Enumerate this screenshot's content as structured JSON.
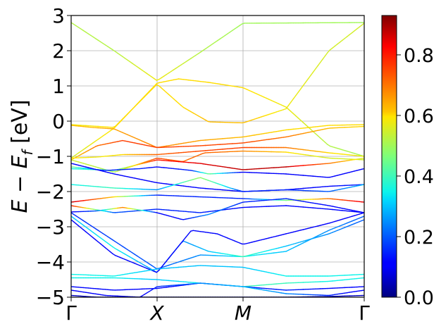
{
  "chart_data": {
    "type": "line",
    "title": "",
    "ylabel": "E − E_f [eV]",
    "ylabel_main": "E − E",
    "ylabel_sub": "f",
    "ylabel_unit": " [eV]",
    "ylim": [
      -5,
      3
    ],
    "yticks": [
      3,
      2,
      1,
      0,
      -1,
      -2,
      -3,
      -4,
      -5
    ],
    "ytick_labels": [
      "3",
      "2",
      "1",
      "0",
      "−1",
      "−2",
      "−3",
      "−4",
      "−5"
    ],
    "xrange": [
      0,
      3.41
    ],
    "xticks": [
      0,
      1,
      2,
      3.41
    ],
    "xtick_labels": [
      "Γ",
      "X",
      "M",
      "Γ"
    ],
    "grid": true,
    "colormap": "jet",
    "colorbar": {
      "range": [
        0,
        0.93
      ],
      "ticks": [
        0.0,
        0.2,
        0.4,
        0.6,
        0.8
      ],
      "tick_labels": [
        "0.0",
        "0.2",
        "0.4",
        "0.6",
        "0.8"
      ]
    },
    "bands": [
      {
        "x": [
          0,
          0.5,
          1,
          1.5,
          2,
          2.7,
          3.41
        ],
        "y": [
          2.8,
          2.0,
          1.15,
          1.95,
          2.78,
          2.79,
          2.8
        ],
        "c": [
          0.52,
          0.52,
          0.58,
          0.52,
          0.5,
          0.5,
          0.5
        ]
      },
      {
        "x": [
          0,
          0.5,
          1,
          1.3,
          1.6,
          2,
          2.5,
          3,
          3.41
        ],
        "y": [
          -0.1,
          -0.18,
          1.05,
          0.4,
          -0.02,
          -0.05,
          0.35,
          2.0,
          2.78
        ],
        "c": [
          0.58,
          0.6,
          0.6,
          0.6,
          0.62,
          0.62,
          0.58,
          0.55,
          0.55
        ]
      },
      {
        "x": [
          0,
          0.5,
          1,
          1.25,
          1.6,
          2,
          2.5,
          3,
          3.41
        ],
        "y": [
          -1.05,
          -0.2,
          1.08,
          1.2,
          1.1,
          0.95,
          0.4,
          -0.7,
          -1.0
        ],
        "c": [
          0.55,
          0.6,
          0.6,
          0.6,
          0.6,
          0.6,
          0.58,
          0.52,
          0.5
        ]
      },
      {
        "x": [
          0,
          0.25,
          0.5,
          1,
          1.5,
          2,
          2.5,
          3,
          3.41
        ],
        "y": [
          -0.12,
          -0.18,
          -0.22,
          -0.75,
          -0.55,
          -0.45,
          -0.25,
          -0.12,
          -0.1
        ],
        "c": [
          0.62,
          0.62,
          0.65,
          0.68,
          0.65,
          0.62,
          0.6,
          0.6,
          0.6
        ]
      },
      {
        "x": [
          0,
          0.3,
          0.6,
          1,
          1.5,
          2,
          2.5,
          3,
          3.41
        ],
        "y": [
          -1.1,
          -0.7,
          -0.55,
          -0.75,
          -0.7,
          -0.62,
          -0.45,
          -0.2,
          -0.15
        ],
        "c": [
          0.6,
          0.7,
          0.76,
          0.76,
          0.75,
          0.75,
          0.7,
          0.62,
          0.6
        ]
      },
      {
        "x": [
          0,
          0.3,
          0.6,
          1,
          1.5,
          2,
          2.5,
          3,
          3.41
        ],
        "y": [
          -1.05,
          -1.02,
          -0.95,
          -0.95,
          -0.85,
          -0.75,
          -0.75,
          -0.9,
          -1.0
        ],
        "c": [
          0.6,
          0.58,
          0.6,
          0.72,
          0.75,
          0.76,
          0.7,
          0.6,
          0.58
        ]
      },
      {
        "x": [
          0,
          0.5,
          1,
          1.3,
          1.55,
          2,
          2.5,
          3,
          3.41
        ],
        "y": [
          -1.1,
          -1.45,
          -1.05,
          -1.15,
          -0.9,
          -0.85,
          -0.88,
          -1.05,
          -1.1
        ],
        "c": [
          0.55,
          0.5,
          0.75,
          0.7,
          0.72,
          0.68,
          0.6,
          0.55,
          0.55
        ]
      },
      {
        "x": [
          0,
          0.5,
          1,
          1.5,
          2,
          2.5,
          3,
          3.41
        ],
        "y": [
          -1.35,
          -1.4,
          -1.1,
          -1.2,
          -1.38,
          -1.3,
          -1.2,
          -1.05
        ],
        "c": [
          0.35,
          0.4,
          0.8,
          0.85,
          0.88,
          0.88,
          0.7,
          0.55
        ]
      },
      {
        "x": [
          0,
          0.4,
          0.8,
          1,
          1.4,
          1.6,
          2,
          2.5,
          3,
          3.41
        ],
        "y": [
          -1.3,
          -1.4,
          -1.35,
          -1.3,
          -1.4,
          -1.5,
          -1.45,
          -1.5,
          -1.6,
          -1.35
        ],
        "c": [
          0.45,
          0.15,
          0.15,
          0.12,
          0.15,
          0.45,
          0.1,
          0.1,
          0.1,
          0.12
        ]
      },
      {
        "x": [
          0,
          0.5,
          1,
          1.5,
          2,
          2.5,
          3,
          3.41
        ],
        "y": [
          -1.2,
          -1.5,
          -1.75,
          -1.9,
          -2.0,
          -1.95,
          -1.85,
          -1.8
        ],
        "c": [
          0.1,
          0.1,
          0.1,
          0.12,
          0.12,
          0.12,
          0.12,
          0.15
        ]
      },
      {
        "x": [
          0,
          0.5,
          1,
          1.5,
          1.85,
          2,
          2.5,
          3,
          3.41
        ],
        "y": [
          -1.8,
          -1.9,
          -1.95,
          -1.6,
          -1.9,
          -2.0,
          -1.95,
          -2.0,
          -1.8
        ],
        "c": [
          0.35,
          0.4,
          0.25,
          0.5,
          0.3,
          0.15,
          0.15,
          0.2,
          0.3
        ]
      },
      {
        "x": [
          0,
          0.5,
          1,
          1.5,
          2,
          2.5,
          3,
          3.41
        ],
        "y": [
          -2.3,
          -2.15,
          -2.1,
          -2.15,
          -2.2,
          -2.25,
          -2.2,
          -2.3
        ],
        "c": [
          0.88,
          0.6,
          0.15,
          0.15,
          0.15,
          0.45,
          0.7,
          0.85
        ]
      },
      {
        "x": [
          0,
          0.5,
          1,
          1.5,
          2,
          2.5,
          3,
          3.41
        ],
        "y": [
          -2.4,
          -2.6,
          -2.5,
          -2.6,
          -2.45,
          -2.4,
          -2.5,
          -2.6
        ],
        "c": [
          0.8,
          0.2,
          0.15,
          0.15,
          0.12,
          0.12,
          0.12,
          0.12
        ]
      },
      {
        "x": [
          0,
          0.3,
          0.6,
          1,
          1.3,
          1.6,
          2,
          2.5,
          3,
          3.41
        ],
        "y": [
          -2.58,
          -2.55,
          -2.45,
          -2.6,
          -2.8,
          -2.65,
          -2.3,
          -2.2,
          -2.4,
          -2.6
        ],
        "c": [
          0.1,
          0.2,
          0.7,
          0.12,
          0.12,
          0.25,
          0.15,
          0.15,
          0.12,
          0.1
        ]
      },
      {
        "x": [
          0,
          0.5,
          1,
          1.5,
          2,
          2.5,
          3,
          3.41
        ],
        "y": [
          -2.6,
          -3.4,
          -4.2,
          -3.8,
          -3.85,
          -3.7,
          -3.1,
          -2.7
        ],
        "c": [
          0.15,
          0.18,
          0.2,
          0.25,
          0.35,
          0.3,
          0.25,
          0.2
        ]
      },
      {
        "x": [
          0,
          0.5,
          1,
          1.3,
          1.6,
          2,
          2.5,
          3,
          3.41
        ],
        "y": [
          -2.7,
          -3.6,
          -4.3,
          -3.4,
          -3.7,
          -3.85,
          -3.55,
          -3.2,
          -2.8
        ],
        "c": [
          0.3,
          0.35,
          0.25,
          0.25,
          0.3,
          0.4,
          0.3,
          0.25,
          0.2
        ]
      },
      {
        "x": [
          0,
          0.5,
          1,
          1.4,
          1.7,
          2,
          2.5,
          3,
          3.41
        ],
        "y": [
          -2.8,
          -3.8,
          -4.3,
          -3.1,
          -3.2,
          -3.5,
          -3.2,
          -2.9,
          -2.6
        ],
        "c": [
          0.1,
          0.12,
          0.12,
          0.12,
          0.12,
          0.12,
          0.1,
          0.1,
          0.1
        ]
      },
      {
        "x": [
          0,
          0.5,
          1,
          1.5,
          2,
          2.5,
          3,
          3.41
        ],
        "y": [
          -4.35,
          -4.4,
          -4.2,
          -4.1,
          -4.15,
          -4.4,
          -4.4,
          -4.35
        ],
        "c": [
          0.35,
          0.35,
          0.3,
          0.3,
          0.3,
          0.35,
          0.35,
          0.35
        ]
      },
      {
        "x": [
          0,
          0.5,
          1,
          1.5,
          2,
          2.5,
          3,
          3.41
        ],
        "y": [
          -4.45,
          -4.45,
          -4.5,
          -4.6,
          -4.7,
          -4.6,
          -4.55,
          -4.45
        ],
        "c": [
          0.35,
          0.35,
          0.3,
          0.35,
          0.4,
          0.4,
          0.35,
          0.35
        ]
      },
      {
        "x": [
          0,
          0.5,
          1,
          1.5,
          2,
          2.5,
          3,
          3.41
        ],
        "y": [
          -4.7,
          -4.8,
          -4.75,
          -4.6,
          -4.7,
          -4.8,
          -4.75,
          -4.7
        ],
        "c": [
          0.12,
          0.12,
          0.12,
          0.12,
          0.12,
          0.15,
          0.12,
          0.12
        ]
      },
      {
        "x": [
          0,
          0.4,
          0.8,
          1,
          1.5,
          2,
          2.5,
          3,
          3.41
        ],
        "y": [
          -4.8,
          -4.95,
          -5.0,
          -4.7,
          -4.6,
          -4.7,
          -4.9,
          -4.95,
          -4.8
        ],
        "c": [
          0.1,
          0.1,
          0.1,
          0.15,
          0.25,
          0.3,
          0.25,
          0.15,
          0.1
        ]
      },
      {
        "x": [
          0,
          0.3,
          0.5,
          1,
          1.5,
          2,
          2.5,
          3,
          3.41
        ],
        "y": [
          -4.95,
          -5.0,
          -5.0,
          -5.0,
          -5.0,
          -5.0,
          -5.0,
          -4.98,
          -4.95
        ],
        "c": [
          0.05,
          0.05,
          0.05,
          0.05,
          0.05,
          0.05,
          0.05,
          0.05,
          0.05
        ]
      }
    ]
  }
}
